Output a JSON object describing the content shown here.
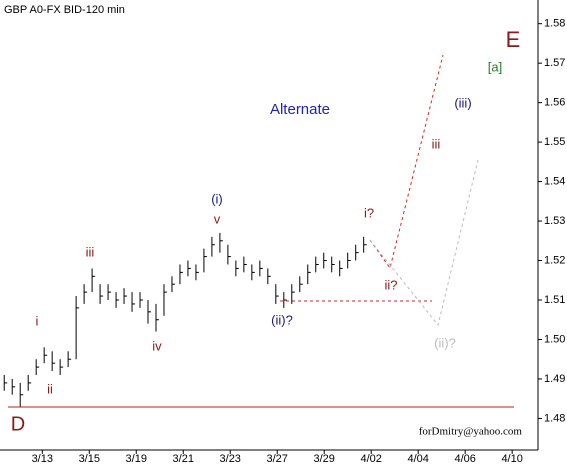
{
  "chart_data": {
    "type": "ohlc",
    "title": "GBP A0-FX BID-120 min",
    "footer": "forDmitry@yahoo.com",
    "color": "#000000",
    "x": [
      -1.62,
      -1.28,
      -0.94,
      -0.6,
      -0.26,
      0.08,
      0.42,
      0.76,
      1.1,
      1.44,
      1.78,
      2.12,
      2.46,
      2.8,
      3.14,
      3.48,
      3.82,
      4.16,
      4.5,
      4.84,
      5.18,
      5.52,
      5.86,
      6.2,
      6.54,
      6.88,
      7.22,
      7.56,
      7.9,
      8.24,
      8.58,
      8.92,
      9.26,
      9.6,
      9.94,
      10.28,
      10.62,
      10.96,
      11.3,
      11.64,
      11.98,
      12.32,
      12.66,
      13.0,
      13.34,
      13.68
    ],
    "high": [
      1.491,
      1.49,
      1.489,
      1.491,
      1.495,
      1.498,
      1.497,
      1.495,
      1.497,
      1.511,
      1.514,
      1.518,
      1.514,
      1.514,
      1.512,
      1.513,
      1.512,
      1.512,
      1.51,
      1.509,
      1.514,
      1.516,
      1.519,
      1.52,
      1.519,
      1.523,
      1.526,
      1.527,
      1.524,
      1.52,
      1.521,
      1.519,
      1.52,
      1.518,
      1.514,
      1.512,
      1.514,
      1.516,
      1.519,
      1.521,
      1.522,
      1.521,
      1.52,
      1.522,
      1.524,
      1.526
    ],
    "low": [
      1.487,
      1.486,
      1.483,
      1.487,
      1.491,
      1.494,
      1.492,
      1.491,
      1.493,
      1.495,
      1.509,
      1.512,
      1.509,
      1.51,
      1.508,
      1.509,
      1.507,
      1.508,
      1.504,
      1.502,
      1.506,
      1.512,
      1.514,
      1.516,
      1.515,
      1.517,
      1.521,
      1.522,
      1.519,
      1.516,
      1.517,
      1.515,
      1.516,
      1.514,
      1.509,
      1.508,
      1.509,
      1.512,
      1.514,
      1.517,
      1.518,
      1.517,
      1.516,
      1.518,
      1.52,
      1.522
    ],
    "close": [
      1.489,
      1.488,
      1.486,
      1.489,
      1.493,
      1.496,
      1.494,
      1.493,
      1.495,
      1.508,
      1.512,
      1.516,
      1.511,
      1.512,
      1.51,
      1.511,
      1.509,
      1.51,
      1.507,
      1.505,
      1.512,
      1.514,
      1.517,
      1.518,
      1.517,
      1.521,
      1.524,
      1.525,
      1.521,
      1.518,
      1.519,
      1.517,
      1.518,
      1.516,
      1.511,
      1.51,
      1.512,
      1.514,
      1.517,
      1.519,
      1.52,
      1.519,
      1.518,
      1.52,
      1.522,
      1.524
    ],
    "xlim": [
      -1.8,
      21.1
    ],
    "xticks": [
      {
        "value": 0,
        "label": "3/13"
      },
      {
        "value": 2,
        "label": "3/15"
      },
      {
        "value": 4,
        "label": "3/19"
      },
      {
        "value": 6,
        "label": "3/21"
      },
      {
        "value": 8,
        "label": "3/23"
      },
      {
        "value": 10,
        "label": "3/27"
      },
      {
        "value": 12,
        "label": "3/29"
      },
      {
        "value": 14,
        "label": "4/02"
      },
      {
        "value": 16,
        "label": "4/04"
      },
      {
        "value": 18,
        "label": "4/06"
      },
      {
        "value": 20,
        "label": "4/10"
      }
    ],
    "ylim": [
      1.472,
      1.586
    ],
    "yticks": [
      1.48,
      1.49,
      {
        "value": 1.5,
        "label": "1.50"
      },
      1.51,
      1.52,
      1.53,
      1.54,
      1.55,
      1.56,
      1.57,
      1.58
    ],
    "annotations": [
      {
        "text": "(i)",
        "color": "#1a1a7a"
      },
      {
        "text": "v",
        "color": "#8b1a1a"
      },
      {
        "text": "i",
        "color": "#8b1a1a"
      },
      {
        "text": "ii",
        "color": "#8b1a1a"
      },
      {
        "text": "iii",
        "color": "#8b1a1a"
      },
      {
        "text": "iv",
        "color": "#8b1a1a"
      },
      {
        "text": "(ii)?",
        "color": "#1a1a7a"
      },
      {
        "text": "i?",
        "color": "#8b1a1a"
      },
      {
        "text": "ii?",
        "color": "#8b1a1a"
      },
      {
        "text": "iii",
        "color": "#8b1a1a"
      },
      {
        "text": "(iii)",
        "color": "#1a1a7a"
      },
      {
        "text": "[a]",
        "color": "#2a7a2a"
      },
      {
        "text": "E",
        "color": "#8b1a1a"
      },
      {
        "text": "D",
        "color": "#8b1a1a"
      },
      {
        "text": "(ii)?",
        "color": "#bbbbbb"
      },
      {
        "text": "Alternate",
        "color": "#2020c0"
      }
    ]
  }
}
